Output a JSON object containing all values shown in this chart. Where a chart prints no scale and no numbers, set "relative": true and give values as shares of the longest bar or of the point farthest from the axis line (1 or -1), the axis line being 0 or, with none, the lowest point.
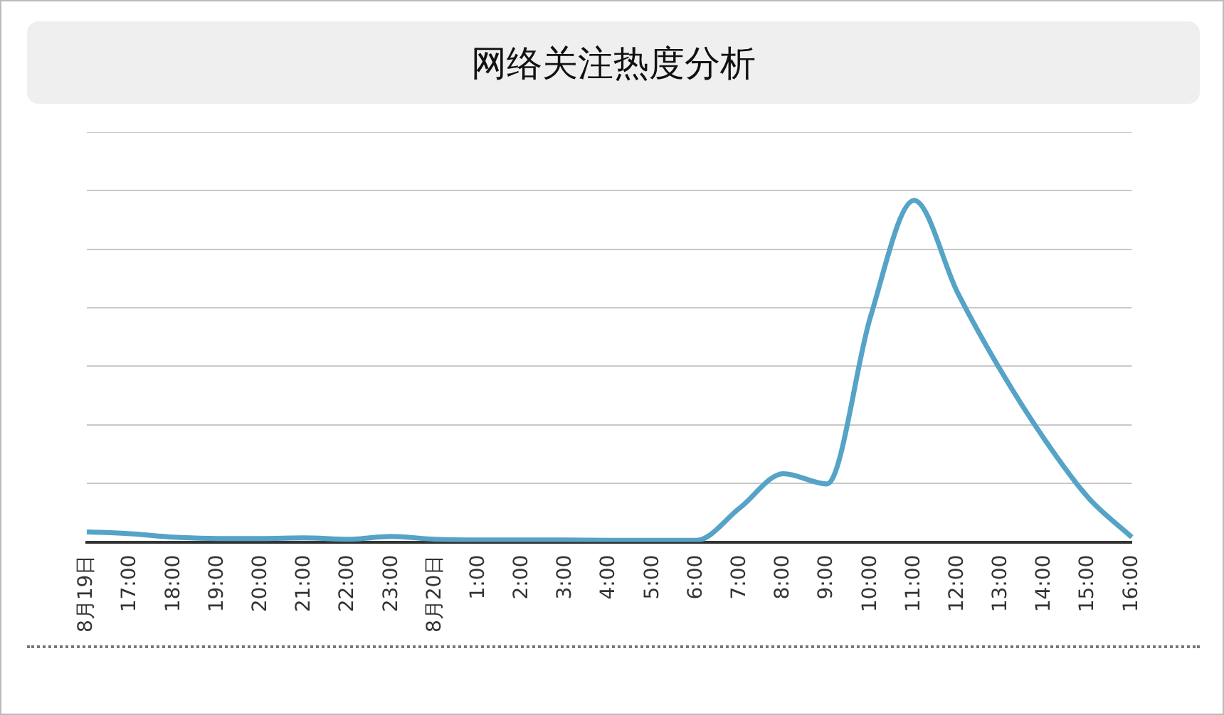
{
  "chart_data": {
    "type": "line",
    "title": "网络关注热度分析",
    "relative": true,
    "grid": "y",
    "marker": "none",
    "legend": false,
    "categories": [
      "8月19日",
      "17:00",
      "18:00",
      "19:00",
      "20:00",
      "21:00",
      "22:00",
      "23:00",
      "8月20日",
      "1:00",
      "2:00",
      "3:00",
      "4:00",
      "5:00",
      "6:00",
      "7:00",
      "8:00",
      "9:00",
      "10:00",
      "11:00",
      "12:00",
      "13:00",
      "14:00",
      "15:00",
      "16:00"
    ],
    "series": [
      {
        "color": "#55a3c6",
        "values": [
          0.03,
          0.024,
          0.014,
          0.01,
          0.01,
          0.012,
          0.008,
          0.016,
          0.008,
          0.006,
          0.006,
          0.006,
          0.005,
          0.005,
          0.005,
          0.1,
          0.2,
          0.17,
          0.66,
          1,
          0.73,
          0.5,
          0.3,
          0.13,
          0.014
        ]
      }
    ]
  }
}
